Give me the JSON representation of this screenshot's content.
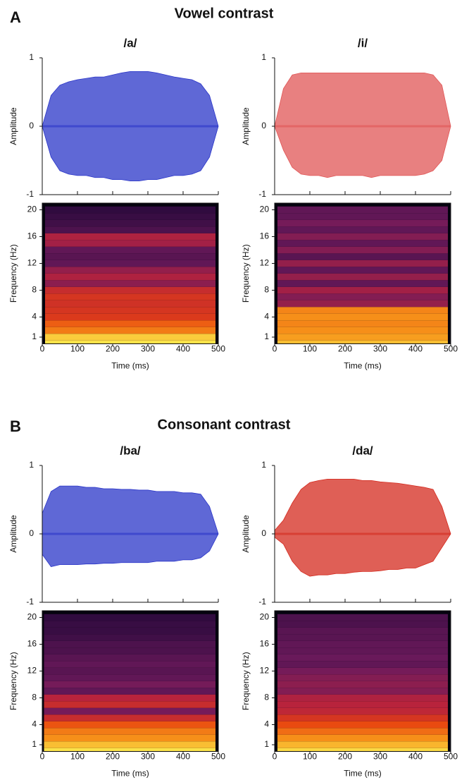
{
  "panels": [
    {
      "label": "A",
      "title": "Vowel contrast"
    },
    {
      "label": "B",
      "title": "Consonant contrast"
    }
  ],
  "chart_data": [
    {
      "type": "waveform",
      "title": "/a/",
      "ylabel": "Amplitude",
      "color": "#2a35c8",
      "x": [
        0,
        25,
        50,
        75,
        100,
        125,
        150,
        175,
        200,
        225,
        250,
        275,
        300,
        325,
        350,
        375,
        400,
        425,
        450,
        475,
        500
      ],
      "upper": [
        0,
        0.45,
        0.6,
        0.65,
        0.68,
        0.7,
        0.72,
        0.72,
        0.75,
        0.78,
        0.8,
        0.8,
        0.8,
        0.78,
        0.75,
        0.72,
        0.7,
        0.68,
        0.62,
        0.45,
        0
      ],
      "lower": [
        0,
        -0.45,
        -0.65,
        -0.7,
        -0.72,
        -0.72,
        -0.75,
        -0.75,
        -0.78,
        -0.78,
        -0.8,
        -0.8,
        -0.78,
        -0.78,
        -0.75,
        -0.72,
        -0.72,
        -0.7,
        -0.65,
        -0.45,
        0
      ],
      "xlim": [
        0,
        500
      ],
      "xticks": [
        0,
        100,
        200,
        300,
        400,
        500
      ],
      "ylim": [
        -1,
        1
      ],
      "yticks": [
        -1,
        0,
        1
      ]
    },
    {
      "type": "spectrogram",
      "xlabel": "Time (ms)",
      "ylabel": "Frequency (Hz)",
      "y": [
        0,
        1,
        2,
        3,
        4,
        5,
        6,
        7,
        8,
        9,
        10,
        11,
        12,
        13,
        14,
        15,
        16,
        17,
        18,
        19,
        20
      ],
      "values": [
        1.0,
        0.95,
        0.78,
        0.72,
        0.62,
        0.6,
        0.58,
        0.6,
        0.55,
        0.4,
        0.48,
        0.42,
        0.3,
        0.28,
        0.3,
        0.45,
        0.48,
        0.25,
        0.22,
        0.2,
        0.18
      ],
      "xrange": [
        8,
        492
      ],
      "colormap": [
        "#05030f",
        "#2b0a3d",
        "#6e1a5c",
        "#b8233c",
        "#e8430f",
        "#f7961a",
        "#fbe34a"
      ],
      "xlim": [
        0,
        500
      ],
      "xticks": [
        0,
        100,
        200,
        300,
        400,
        500
      ],
      "ylim": [
        0,
        21
      ],
      "yticks": [
        1,
        4,
        8,
        12,
        16,
        20
      ]
    },
    {
      "type": "waveform",
      "title": "/i/",
      "ylabel": "Amplitude",
      "color": "#e05555",
      "x": [
        0,
        25,
        50,
        75,
        100,
        125,
        150,
        175,
        200,
        225,
        250,
        275,
        300,
        325,
        350,
        375,
        400,
        425,
        450,
        475,
        500
      ],
      "upper": [
        0,
        0.55,
        0.75,
        0.78,
        0.78,
        0.78,
        0.78,
        0.78,
        0.78,
        0.78,
        0.78,
        0.78,
        0.78,
        0.78,
        0.78,
        0.78,
        0.78,
        0.78,
        0.75,
        0.6,
        0
      ],
      "lower": [
        0,
        -0.35,
        -0.6,
        -0.7,
        -0.72,
        -0.72,
        -0.75,
        -0.72,
        -0.72,
        -0.72,
        -0.72,
        -0.75,
        -0.72,
        -0.72,
        -0.72,
        -0.72,
        -0.72,
        -0.7,
        -0.65,
        -0.5,
        0
      ],
      "xlim": [
        0,
        500
      ],
      "xticks": [
        0,
        100,
        200,
        300,
        400,
        500
      ],
      "ylim": [
        -1,
        1
      ],
      "yticks": [
        -1,
        0,
        1
      ]
    },
    {
      "type": "spectrogram",
      "xlabel": "Time (ms)",
      "ylabel": "Frequency (Hz)",
      "y": [
        0,
        1,
        2,
        3,
        4,
        5,
        6,
        7,
        8,
        9,
        10,
        11,
        12,
        13,
        14,
        15,
        16,
        17,
        18,
        19,
        20
      ],
      "values": [
        0.92,
        0.85,
        0.82,
        0.8,
        0.82,
        0.8,
        0.42,
        0.38,
        0.45,
        0.3,
        0.42,
        0.3,
        0.42,
        0.28,
        0.38,
        0.3,
        0.38,
        0.3,
        0.35,
        0.3,
        0.3
      ],
      "xrange": [
        8,
        492
      ],
      "colormap": [
        "#05030f",
        "#2b0a3d",
        "#6e1a5c",
        "#b8233c",
        "#e8430f",
        "#f7961a",
        "#fbe34a"
      ],
      "xlim": [
        0,
        500
      ],
      "xticks": [
        0,
        100,
        200,
        300,
        400,
        500
      ],
      "ylim": [
        0,
        21
      ],
      "yticks": [
        1,
        4,
        8,
        12,
        16,
        20
      ]
    },
    {
      "type": "waveform",
      "title": "/ba/",
      "ylabel": "Amplitude",
      "color": "#2a35c8",
      "x": [
        0,
        25,
        50,
        75,
        100,
        125,
        150,
        175,
        200,
        225,
        250,
        275,
        300,
        325,
        350,
        375,
        400,
        425,
        450,
        475,
        500
      ],
      "upper": [
        0.3,
        0.62,
        0.7,
        0.7,
        0.7,
        0.68,
        0.68,
        0.66,
        0.66,
        0.65,
        0.65,
        0.64,
        0.64,
        0.62,
        0.62,
        0.62,
        0.6,
        0.6,
        0.58,
        0.4,
        0
      ],
      "lower": [
        -0.3,
        -0.48,
        -0.45,
        -0.45,
        -0.45,
        -0.44,
        -0.44,
        -0.43,
        -0.43,
        -0.42,
        -0.42,
        -0.42,
        -0.42,
        -0.4,
        -0.4,
        -0.4,
        -0.38,
        -0.38,
        -0.35,
        -0.25,
        0
      ],
      "xlim": [
        0,
        500
      ],
      "xticks": [
        0,
        100,
        200,
        300,
        400,
        500
      ],
      "ylim": [
        -1,
        1
      ],
      "yticks": [
        -1,
        0,
        1
      ]
    },
    {
      "type": "spectrogram",
      "xlabel": "Time (ms)",
      "ylabel": "Frequency (Hz)",
      "y": [
        0,
        1,
        2,
        3,
        4,
        5,
        6,
        7,
        8,
        9,
        10,
        11,
        12,
        13,
        14,
        15,
        16,
        17,
        18,
        19,
        20
      ],
      "values": [
        1.0,
        0.92,
        0.82,
        0.78,
        0.7,
        0.55,
        0.35,
        0.55,
        0.5,
        0.3,
        0.35,
        0.3,
        0.28,
        0.3,
        0.28,
        0.25,
        0.25,
        0.22,
        0.2,
        0.2,
        0.18
      ],
      "xrange": [
        5,
        492
      ],
      "colormap": [
        "#05030f",
        "#2b0a3d",
        "#6e1a5c",
        "#b8233c",
        "#e8430f",
        "#f7961a",
        "#fbe34a"
      ],
      "xlim": [
        0,
        500
      ],
      "xticks": [
        0,
        100,
        200,
        300,
        400,
        500
      ],
      "ylim": [
        0,
        21
      ],
      "yticks": [
        1,
        4,
        8,
        12,
        16,
        20
      ]
    },
    {
      "type": "waveform",
      "title": "/da/",
      "ylabel": "Amplitude",
      "color": "#d42a1e",
      "x": [
        0,
        25,
        50,
        75,
        100,
        125,
        150,
        175,
        200,
        225,
        250,
        275,
        300,
        325,
        350,
        375,
        400,
        425,
        450,
        475,
        500
      ],
      "upper": [
        0.05,
        0.2,
        0.45,
        0.65,
        0.75,
        0.78,
        0.8,
        0.8,
        0.8,
        0.8,
        0.78,
        0.78,
        0.76,
        0.75,
        0.74,
        0.72,
        0.7,
        0.68,
        0.65,
        0.4,
        0
      ],
      "lower": [
        -0.05,
        -0.15,
        -0.4,
        -0.55,
        -0.62,
        -0.6,
        -0.6,
        -0.58,
        -0.58,
        -0.56,
        -0.55,
        -0.55,
        -0.54,
        -0.52,
        -0.52,
        -0.5,
        -0.5,
        -0.45,
        -0.4,
        -0.2,
        0
      ],
      "xlim": [
        0,
        500
      ],
      "xticks": [
        0,
        100,
        200,
        300,
        400,
        500
      ],
      "ylim": [
        -1,
        1
      ],
      "yticks": [
        -1,
        0,
        1
      ]
    },
    {
      "type": "spectrogram",
      "xlabel": "Time (ms)",
      "ylabel": "Frequency (Hz)",
      "y": [
        0,
        1,
        2,
        3,
        4,
        5,
        6,
        7,
        8,
        9,
        10,
        11,
        12,
        13,
        14,
        15,
        16,
        17,
        18,
        19,
        20
      ],
      "values": [
        0.98,
        0.9,
        0.82,
        0.75,
        0.68,
        0.6,
        0.52,
        0.5,
        0.48,
        0.38,
        0.4,
        0.38,
        0.35,
        0.3,
        0.32,
        0.3,
        0.3,
        0.28,
        0.28,
        0.25,
        0.25
      ],
      "xrange": [
        8,
        492
      ],
      "colormap": [
        "#05030f",
        "#2b0a3d",
        "#6e1a5c",
        "#b8233c",
        "#e8430f",
        "#f7961a",
        "#fbe34a"
      ],
      "xlim": [
        0,
        500
      ],
      "xticks": [
        0,
        100,
        200,
        300,
        400,
        500
      ],
      "ylim": [
        0,
        21
      ],
      "yticks": [
        1,
        4,
        8,
        12,
        16,
        20
      ]
    }
  ]
}
